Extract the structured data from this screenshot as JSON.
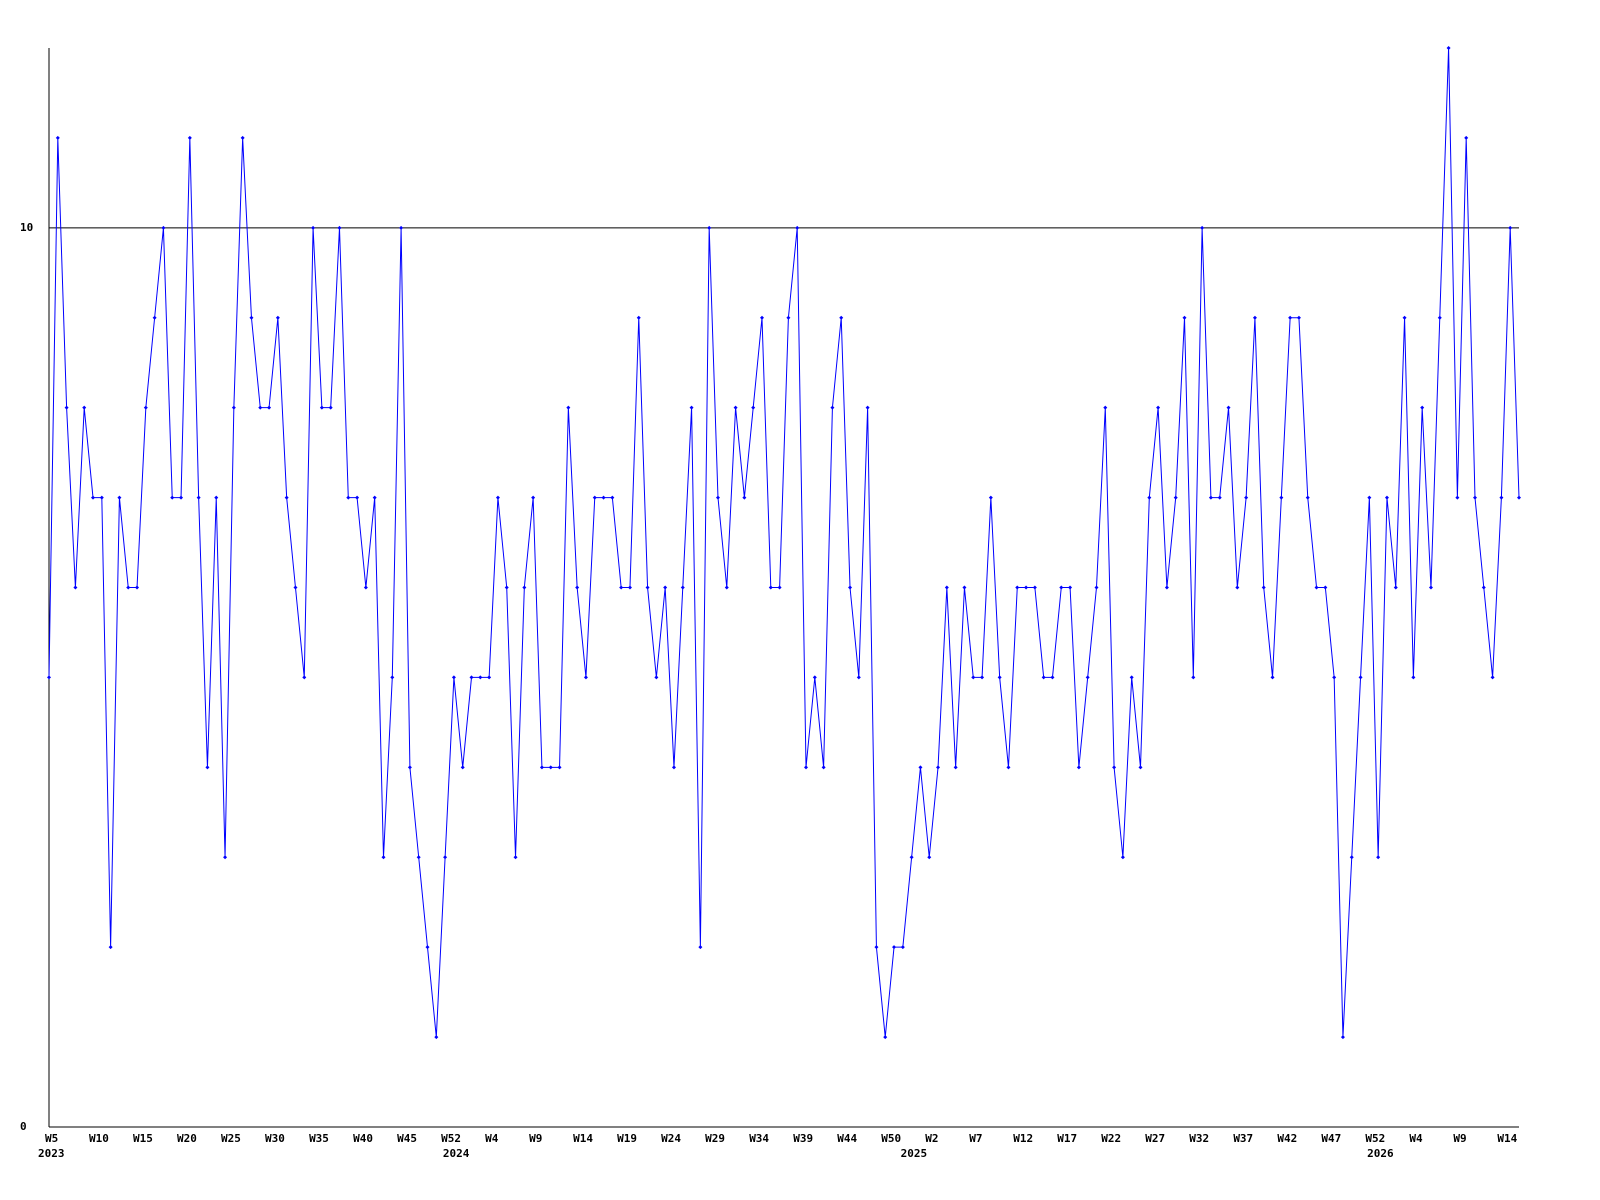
{
  "chart_data": {
    "type": "line",
    "categories": [
      "W5",
      null,
      null,
      null,
      null,
      "W10",
      null,
      null,
      null,
      null,
      "W15",
      null,
      null,
      null,
      null,
      "W20",
      null,
      null,
      null,
      null,
      "W25",
      null,
      null,
      null,
      null,
      "W30",
      null,
      null,
      null,
      null,
      "W35",
      null,
      null,
      null,
      null,
      "W40",
      null,
      null,
      null,
      null,
      "W45",
      null,
      null,
      null,
      null,
      "W52",
      null,
      null,
      null,
      null,
      "W4",
      null,
      null,
      null,
      null,
      "W9",
      null,
      null,
      null,
      null,
      "W14",
      null,
      null,
      null,
      null,
      "W19",
      null,
      null,
      null,
      null,
      "W24",
      null,
      null,
      null,
      null,
      "W29",
      null,
      null,
      null,
      null,
      "W34",
      null,
      null,
      null,
      null,
      "W39",
      null,
      null,
      null,
      null,
      "W44",
      null,
      null,
      null,
      null,
      "W50",
      null,
      null,
      null,
      null,
      "W2",
      null,
      null,
      null,
      null,
      "W7",
      null,
      null,
      null,
      null,
      "W12",
      null,
      null,
      null,
      null,
      "W17",
      null,
      null,
      null,
      null,
      "W22",
      null,
      null,
      null,
      null,
      "W27",
      null,
      null,
      null,
      null,
      "W32",
      null,
      null,
      null,
      null,
      "W37",
      null,
      null,
      null,
      null,
      "W42",
      null,
      null,
      null,
      null,
      "W47",
      null,
      null,
      null,
      null,
      "W52",
      null,
      null,
      null,
      null,
      "W4",
      null,
      null,
      null,
      null,
      "W9",
      null,
      null,
      null,
      null,
      "W14",
      null,
      null
    ],
    "year_categories": [
      "2023",
      null,
      null,
      null,
      null,
      null,
      null,
      null,
      null,
      null,
      null,
      null,
      null,
      null,
      null,
      null,
      null,
      null,
      null,
      null,
      null,
      null,
      null,
      null,
      null,
      null,
      null,
      null,
      null,
      null,
      null,
      null,
      null,
      null,
      null,
      null,
      null,
      null,
      null,
      null,
      null,
      null,
      null,
      null,
      null,
      null,
      "2024",
      null,
      null,
      null,
      null,
      null,
      null,
      null,
      null,
      null,
      null,
      null,
      null,
      null,
      null,
      null,
      null,
      null,
      null,
      null,
      null,
      null,
      null,
      null,
      null,
      null,
      null,
      null,
      null,
      null,
      null,
      null,
      null,
      null,
      null,
      null,
      null,
      null,
      null,
      null,
      null,
      null,
      null,
      null,
      null,
      null,
      null,
      null,
      null,
      null,
      null,
      null,
      "2025",
      null,
      null,
      null,
      null,
      null,
      null,
      null,
      null,
      null,
      null,
      null,
      null,
      null,
      null,
      null,
      null,
      null,
      null,
      null,
      null,
      null,
      null,
      null,
      null,
      null,
      null,
      null,
      null,
      null,
      null,
      null,
      null,
      null,
      null,
      null,
      null,
      null,
      null,
      null,
      null,
      null,
      null,
      null,
      null,
      null,
      null,
      null,
      null,
      null,
      null,
      null,
      null,
      "2026",
      null,
      null,
      null,
      null,
      null,
      null,
      null,
      null,
      null,
      null,
      null,
      null,
      null,
      null,
      null,
      null
    ],
    "series": [
      {
        "color": "#0000ff",
        "values": [
          5,
          11,
          8,
          6,
          8,
          7,
          7,
          2,
          7,
          6,
          6,
          8,
          9,
          10,
          7,
          7,
          11,
          7,
          4,
          7,
          3,
          8,
          11,
          9,
          8,
          8,
          9,
          7,
          6,
          5,
          10,
          8,
          8,
          10,
          7,
          7,
          6,
          7,
          3,
          5,
          10,
          4,
          3,
          2,
          1,
          3,
          5,
          4,
          5,
          5,
          5,
          7,
          6,
          3,
          6,
          7,
          4,
          4,
          4,
          8,
          6,
          5,
          7,
          7,
          7,
          6,
          6,
          9,
          6,
          5,
          6,
          4,
          6,
          8,
          2,
          10,
          7,
          6,
          8,
          7,
          8,
          9,
          6,
          6,
          9,
          10,
          4,
          5,
          4,
          8,
          9,
          6,
          5,
          8,
          2,
          1,
          2,
          2,
          3,
          4,
          3,
          4,
          6,
          4,
          6,
          5,
          5,
          7,
          5,
          4,
          6,
          6,
          6,
          5,
          5,
          6,
          6,
          4,
          5,
          6,
          8,
          4,
          3,
          5,
          4,
          7,
          8,
          6,
          7,
          9,
          5,
          10,
          7,
          7,
          8,
          6,
          7,
          9,
          6,
          5,
          7,
          9,
          9,
          7,
          6,
          6,
          5,
          1,
          3,
          5,
          7,
          3,
          7,
          6,
          9,
          5,
          8,
          6,
          9,
          12,
          7,
          11,
          7,
          6,
          5,
          7,
          10,
          7
        ]
      }
    ],
    "ylim": [
      0,
      12
    ],
    "yticks": [
      0,
      10
    ],
    "grid": true
  }
}
